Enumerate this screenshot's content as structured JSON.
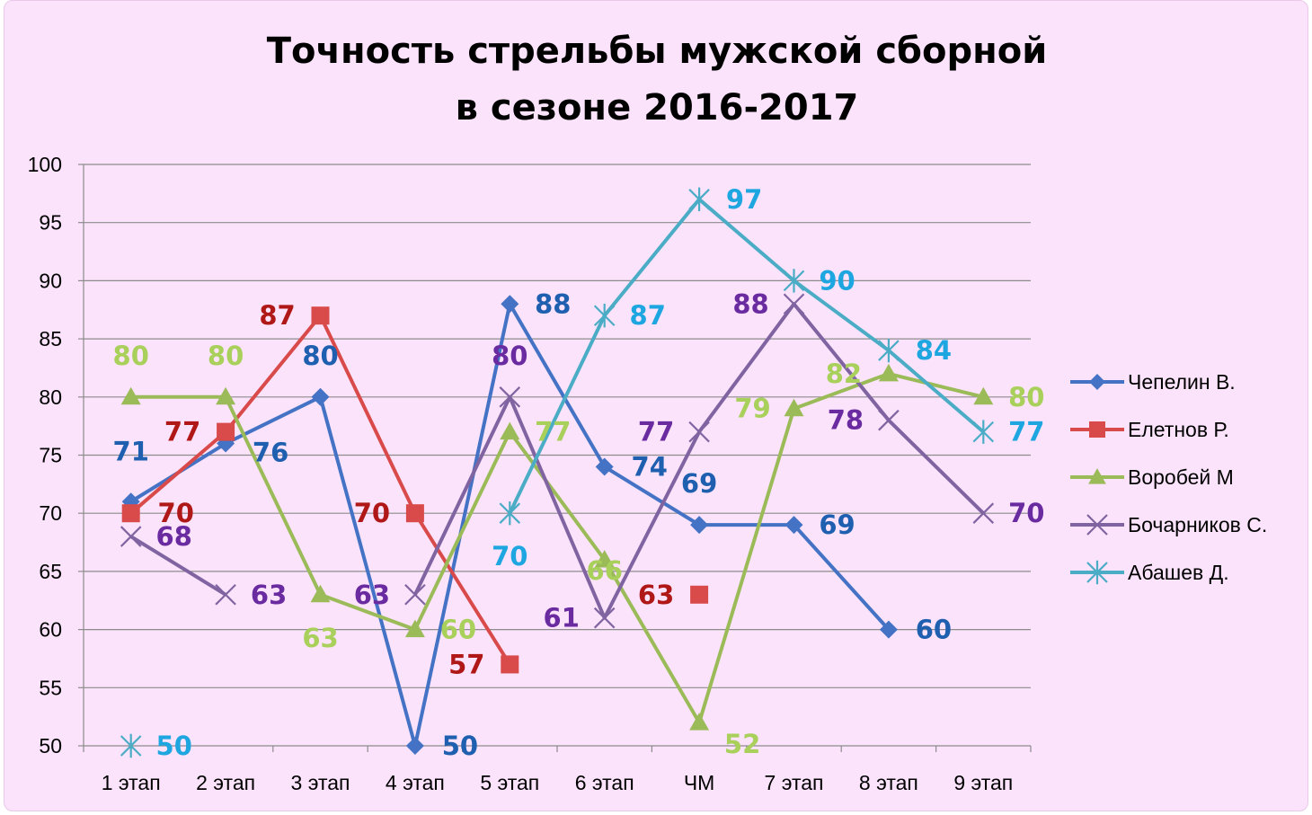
{
  "chart_data": {
    "type": "line",
    "title": [
      "Точность стрельбы мужской сборной",
      "в сезоне 2016-2017"
    ],
    "categories": [
      "1 этап",
      "2 этап",
      "3 этап",
      "4 этап",
      "5 этап",
      "6 этап",
      "ЧМ",
      "7 этап",
      "8 этап",
      "9 этап"
    ],
    "ylim": [
      50,
      100
    ],
    "yticks": [
      "50",
      "55",
      "60",
      "65",
      "70",
      "75",
      "80",
      "85",
      "90",
      "95",
      "100"
    ],
    "grid": true,
    "legend_position": "right",
    "series": [
      {
        "name": "Чепелин В.",
        "color": "#4472c4",
        "label_color": "#1f5fb0",
        "marker": "diamond",
        "values": [
          71,
          76,
          80,
          50,
          88,
          74,
          69,
          69,
          60,
          null
        ],
        "labels": [
          "71",
          "76",
          "80",
          "50",
          "88",
          "74",
          "69",
          "69",
          "60",
          ""
        ]
      },
      {
        "name": "Елетнов Р.",
        "color": "#d94a4a",
        "label_color": "#b01818",
        "marker": "square",
        "values": [
          70,
          77,
          87,
          70,
          57,
          null,
          63,
          null,
          null,
          null
        ],
        "labels": [
          "70",
          "77",
          "87",
          "70",
          "57",
          "",
          "63",
          "",
          "",
          ""
        ]
      },
      {
        "name": "Воробей М",
        "color": "#9bbb59",
        "label_color": "#a8d05a",
        "marker": "triangle",
        "values": [
          80,
          80,
          63,
          60,
          77,
          66,
          52,
          79,
          82,
          80
        ],
        "labels": [
          "80",
          "80",
          "63",
          "60",
          "77",
          "66",
          "52",
          "79",
          "82",
          "80"
        ]
      },
      {
        "name": "Бочарников С.",
        "color": "#8064a2",
        "label_color": "#6a2aa0",
        "marker": "x",
        "values": [
          68,
          63,
          null,
          63,
          80,
          61,
          77,
          88,
          78,
          70
        ],
        "labels": [
          "68",
          "63",
          "",
          "63",
          "80",
          "61",
          "77",
          "88",
          "78",
          "70"
        ]
      },
      {
        "name": "Абашев Д.",
        "color": "#4bacc6",
        "label_color": "#1ea6e0",
        "marker": "star",
        "values": [
          50,
          null,
          null,
          null,
          70,
          87,
          97,
          90,
          84,
          77
        ],
        "labels": [
          "50",
          "",
          "",
          "",
          "70",
          "87",
          "97",
          "90",
          "84",
          "77"
        ]
      }
    ]
  }
}
